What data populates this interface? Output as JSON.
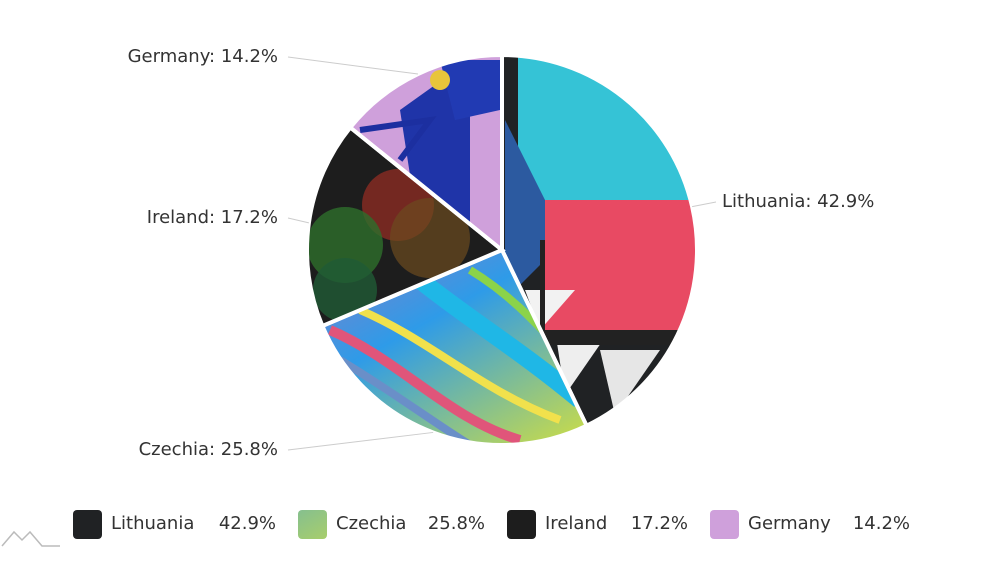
{
  "chart_data": {
    "type": "pie",
    "categories": [
      "Lithuania",
      "Czechia",
      "Ireland",
      "Germany"
    ],
    "values": [
      42.9,
      25.8,
      17.2,
      14.2
    ],
    "value_labels": [
      "42.9%",
      "25.8%",
      "17.2%",
      "14.2%"
    ],
    "slice_labels": [
      "Lithuania: 42.9%",
      "Czechia: 25.8%",
      "Ireland: 17.2%",
      "Germany: 14.2%"
    ],
    "legend": "bottom"
  }
}
